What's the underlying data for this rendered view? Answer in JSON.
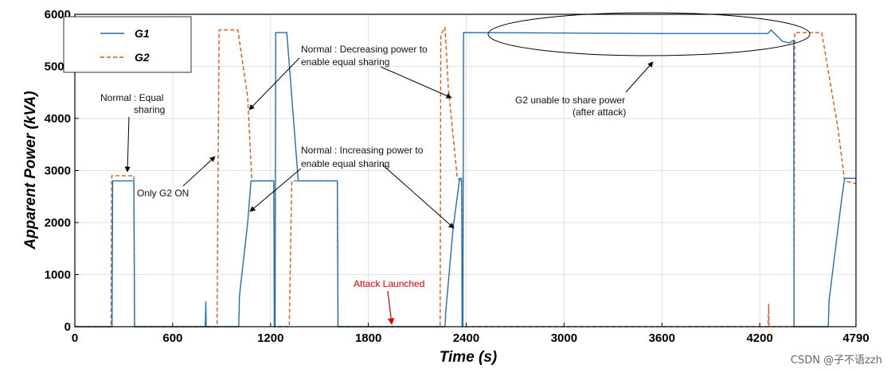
{
  "chart_data": {
    "type": "line",
    "title": "",
    "xlabel": "Time (s)",
    "ylabel": "Apparent Power (kVA)",
    "xlim": [
      0,
      4790
    ],
    "ylim": [
      0,
      6000
    ],
    "xticks": [
      0,
      600,
      1200,
      1800,
      2400,
      3000,
      3600,
      4200,
      4790
    ],
    "yticks": [
      0,
      1000,
      2000,
      3000,
      4000,
      5000,
      6000
    ],
    "grid": true,
    "legend_position": "top-left",
    "colors": {
      "G1": "#1f6fb5",
      "G2": "#e0541e",
      "attack": "#e00000"
    },
    "series": [
      {
        "name": "G1",
        "style": "solid",
        "points": [
          [
            0,
            0
          ],
          [
            228,
            0
          ],
          [
            232,
            2800
          ],
          [
            362,
            2800
          ],
          [
            366,
            0
          ],
          [
            800,
            0
          ],
          [
            803,
            480
          ],
          [
            805,
            0
          ],
          [
            1005,
            0
          ],
          [
            1010,
            600
          ],
          [
            1060,
            2000
          ],
          [
            1080,
            2800
          ],
          [
            1220,
            2800
          ],
          [
            1223,
            0
          ],
          [
            1228,
            0
          ],
          [
            1232,
            5650
          ],
          [
            1300,
            5650
          ],
          [
            1370,
            2800
          ],
          [
            1610,
            2800
          ],
          [
            1614,
            0
          ],
          [
            2270,
            0
          ],
          [
            2275,
            300
          ],
          [
            2320,
            1900
          ],
          [
            2345,
            2500
          ],
          [
            2360,
            2850
          ],
          [
            2372,
            2850
          ],
          [
            2375,
            0
          ],
          [
            2380,
            0
          ],
          [
            2384,
            5650
          ],
          [
            3600,
            5630
          ],
          [
            4250,
            5630
          ],
          [
            4270,
            5700
          ],
          [
            4340,
            5480
          ],
          [
            4380,
            5450
          ],
          [
            4408,
            5500
          ],
          [
            4410,
            0
          ],
          [
            4620,
            0
          ],
          [
            4625,
            500
          ],
          [
            4700,
            2400
          ],
          [
            4720,
            2850
          ],
          [
            4790,
            2850
          ]
        ]
      },
      {
        "name": "G2",
        "style": "dashed",
        "points": [
          [
            0,
            0
          ],
          [
            222,
            0
          ],
          [
            226,
            2900
          ],
          [
            362,
            2900
          ],
          [
            366,
            0
          ],
          [
            872,
            0
          ],
          [
            878,
            2800
          ],
          [
            885,
            5700
          ],
          [
            1000,
            5700
          ],
          [
            1060,
            4400
          ],
          [
            1085,
            2800
          ],
          [
            1220,
            2800
          ],
          [
            1224,
            0
          ],
          [
            1315,
            0
          ],
          [
            1330,
            2800
          ],
          [
            1610,
            2800
          ],
          [
            1614,
            0
          ],
          [
            2240,
            0
          ],
          [
            2244,
            5600
          ],
          [
            2270,
            5750
          ],
          [
            2290,
            4600
          ],
          [
            2345,
            2850
          ],
          [
            2372,
            2800
          ],
          [
            2378,
            0
          ],
          [
            4250,
            0
          ],
          [
            4255,
            430
          ],
          [
            4258,
            0
          ],
          [
            4410,
            0
          ],
          [
            4414,
            5650
          ],
          [
            4580,
            5650
          ],
          [
            4680,
            3800
          ],
          [
            4720,
            2800
          ],
          [
            4790,
            2750
          ]
        ]
      }
    ],
    "annotations": [
      {
        "text": "Normal : Equal sharing",
        "lines": [
          "Normal : Equal",
          "sharing"
        ],
        "arrow_to": [
          330,
          2900
        ]
      },
      {
        "text": "Only G2 ON",
        "arrow_to": [
          875,
          3290
        ]
      },
      {
        "text": "Normal : Decreasing power to enable equal sharing",
        "lines": [
          "Normal : Decreasing power to",
          "enable equal sharing"
        ],
        "arrow_to": [
          1075,
          4150
        ]
      },
      {
        "text": "Normal : Increasing power to enable equal sharing",
        "lines": [
          "Normal : Increasing power to",
          "enable equal sharing"
        ],
        "arrow_to": [
          1075,
          2200
        ]
      },
      {
        "text": "G2 unable to share power (after attack)",
        "lines": [
          "G2 unable to share power",
          "(after attack)"
        ],
        "arrow_to": [
          3590,
          5080
        ]
      },
      {
        "text": "Attack Launched",
        "arrow_to": [
          1940,
          0
        ]
      }
    ]
  },
  "watermark": "CSDN @子不语zzh"
}
